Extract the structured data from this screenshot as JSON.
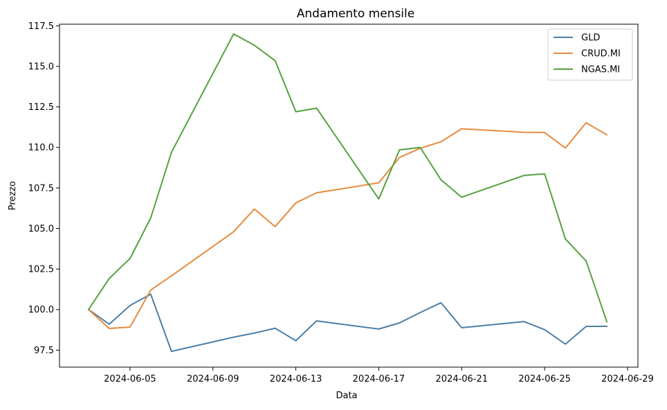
{
  "chart_data": {
    "type": "line",
    "title": "Andamento mensile",
    "xlabel": "Data",
    "ylabel": "Prezzo",
    "x": [
      "2024-06-03",
      "2024-06-04",
      "2024-06-05",
      "2024-06-06",
      "2024-06-07",
      "2024-06-10",
      "2024-06-11",
      "2024-06-12",
      "2024-06-13",
      "2024-06-14",
      "2024-06-17",
      "2024-06-18",
      "2024-06-19",
      "2024-06-20",
      "2024-06-21",
      "2024-06-24",
      "2024-06-25",
      "2024-06-26",
      "2024-06-27",
      "2024-06-28"
    ],
    "xlim": [
      "2024-06-01T14:24",
      "2024-06-29T12:00"
    ],
    "ylim": [
      96.45,
      117.6
    ],
    "xticks": [
      "2024-06-05",
      "2024-06-09",
      "2024-06-13",
      "2024-06-17",
      "2024-06-21",
      "2024-06-25",
      "2024-06-29"
    ],
    "yticks": [
      97.5,
      100.0,
      102.5,
      105.0,
      107.5,
      110.0,
      112.5,
      115.0,
      117.5
    ],
    "ytick_labels": [
      "97.5",
      "100.0",
      "102.5",
      "105.0",
      "107.5",
      "110.0",
      "112.5",
      "115.0",
      "117.5"
    ],
    "legend": "top-right",
    "grid": false,
    "series": [
      {
        "name": "GLD",
        "color": "#4a7ea8",
        "values": [
          100.0,
          99.1,
          100.25,
          100.95,
          97.42,
          98.3,
          98.55,
          98.85,
          98.08,
          99.3,
          98.8,
          99.18,
          99.82,
          100.42,
          98.88,
          99.26,
          98.76,
          97.87,
          98.96,
          98.97
        ]
      },
      {
        "name": "CRUD.MI",
        "color": "#e68a3c",
        "values": [
          100.0,
          98.84,
          98.92,
          101.2,
          102.08,
          104.8,
          106.2,
          105.12,
          106.58,
          107.2,
          107.82,
          109.38,
          109.95,
          110.35,
          111.15,
          110.93,
          110.92,
          109.96,
          111.52,
          110.78
        ]
      },
      {
        "name": "NGAS.MI",
        "color": "#55a040",
        "values": [
          100.0,
          101.92,
          103.15,
          105.65,
          109.7,
          117.0,
          116.3,
          115.35,
          112.2,
          112.42,
          106.82,
          109.85,
          110.0,
          108.0,
          106.93,
          108.27,
          108.37,
          104.35,
          103.0,
          99.25
        ]
      }
    ]
  }
}
